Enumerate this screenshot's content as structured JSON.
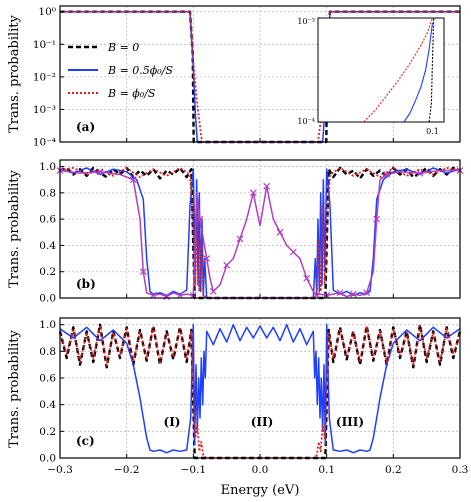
{
  "figure": {
    "xlabel": "Energy (eV)",
    "ylabel": "Trans. probability",
    "x_ticks": [
      "−0.3",
      "−0.2",
      "−0.1",
      "0.0",
      "0.1",
      "0.2",
      "0.3"
    ]
  },
  "chart_data": [
    {
      "panel": "(a)",
      "type": "line",
      "ylabel": "Trans. probability",
      "yscale": "log",
      "xlim": [
        -0.3,
        0.3
      ],
      "ylim": [
        0.0001,
        1.5
      ],
      "y_ticks": [
        "10⁰",
        "10⁻¹",
        "10⁻²",
        "10⁻³",
        "10⁻⁴"
      ],
      "grid": true,
      "legend": {
        "placement": "left",
        "entries": [
          "B = 0",
          "B = 0.5ϕ₀/S",
          "B = ϕ₀/S"
        ]
      },
      "series": [
        {
          "name": "B = 0",
          "color": "#000000",
          "style": "dashed",
          "x": [
            -0.3,
            -0.105,
            -0.101,
            -0.0995,
            0.0995,
            0.101,
            0.105,
            0.3
          ],
          "y": [
            1.0,
            1.0,
            0.05,
            0.0001,
            0.0001,
            0.05,
            1.0,
            1.0
          ]
        },
        {
          "name": "B = 0.5ϕ₀/S",
          "color": "#1f3fff",
          "style": "solid",
          "x": [
            -0.3,
            -0.105,
            -0.1,
            -0.097,
            -0.094,
            0.094,
            0.097,
            0.1,
            0.105,
            0.3
          ],
          "y": [
            1.0,
            1.0,
            0.02,
            0.0008,
            0.0001,
            0.0001,
            0.0008,
            0.02,
            1.0,
            1.0
          ]
        },
        {
          "name": "B = ϕ₀/S",
          "color": "#e02020",
          "style": "dotted",
          "x": [
            -0.3,
            -0.105,
            -0.1,
            -0.095,
            -0.09,
            -0.087,
            0.087,
            0.09,
            0.095,
            0.1,
            0.105,
            0.3
          ],
          "y": [
            1.0,
            1.0,
            0.03,
            0.002,
            0.0003,
            0.0001,
            0.0001,
            0.0003,
            0.002,
            0.03,
            1.0,
            1.0
          ]
        }
      ],
      "inset": {
        "xlim": [
          0.0,
          0.11
        ],
        "ylim": [
          0.0001,
          0.001
        ],
        "x_ticks": [
          "0.1"
        ],
        "y_ticks": [
          "10⁻³",
          "10⁻⁴"
        ],
        "series": [
          {
            "name": "B = 0",
            "color": "#000000",
            "style": "dotted",
            "x": [
              0.097,
              0.099,
              0.1,
              0.101
            ],
            "y": [
              0.0001,
              0.00015,
              0.0004,
              0.001
            ]
          },
          {
            "name": "B = 0.5ϕ₀/S",
            "color": "#1f3fff",
            "style": "solid",
            "x": [
              0.075,
              0.08,
              0.085,
              0.09,
              0.094,
              0.097,
              0.1
            ],
            "y": [
              0.0001,
              0.00012,
              0.00016,
              0.00022,
              0.00032,
              0.0005,
              0.0009
            ]
          },
          {
            "name": "B = ϕ₀/S",
            "color": "#e02020",
            "style": "dotted",
            "x": [
              0.04,
              0.05,
              0.06,
              0.07,
              0.08,
              0.09,
              0.095,
              0.1
            ],
            "y": [
              0.0001,
              0.00013,
              0.00018,
              0.00025,
              0.00036,
              0.00055,
              0.0007,
              0.001
            ]
          }
        ]
      }
    },
    {
      "panel": "(b)",
      "type": "line",
      "ylabel": "Trans. probability",
      "xlim": [
        -0.3,
        0.3
      ],
      "ylim": [
        0,
        1.05
      ],
      "y_ticks": [
        "1.0",
        "0.8",
        "0.6",
        "0.4",
        "0.2",
        "0.0"
      ],
      "grid": true,
      "series": [
        {
          "name": "B = 0",
          "color": "#000000",
          "style": "dashed",
          "x": [
            -0.3,
            -0.29,
            -0.28,
            -0.27,
            -0.26,
            -0.25,
            -0.24,
            -0.23,
            -0.22,
            -0.21,
            -0.2,
            -0.19,
            -0.18,
            -0.17,
            -0.16,
            -0.15,
            -0.14,
            -0.13,
            -0.12,
            -0.11,
            -0.103,
            -0.1,
            -0.098,
            0.098,
            0.1,
            0.103,
            0.11,
            0.12,
            0.13,
            0.14,
            0.15,
            0.16,
            0.17,
            0.18,
            0.19,
            0.2,
            0.21,
            0.22,
            0.23,
            0.24,
            0.25,
            0.26,
            0.27,
            0.28,
            0.29,
            0.3
          ],
          "y": [
            0.97,
            0.99,
            0.94,
            0.98,
            0.93,
            0.99,
            0.95,
            0.92,
            0.98,
            0.94,
            0.99,
            0.92,
            0.97,
            0.93,
            0.98,
            0.91,
            0.97,
            0.94,
            0.99,
            0.92,
            0.98,
            0.4,
            0.0,
            0.0,
            0.4,
            0.98,
            0.92,
            0.99,
            0.94,
            0.97,
            0.91,
            0.98,
            0.93,
            0.97,
            0.92,
            0.99,
            0.94,
            0.98,
            0.92,
            0.95,
            0.99,
            0.93,
            0.98,
            0.94,
            0.99,
            0.97
          ]
        },
        {
          "name": "B = 0.5ϕ₀/S",
          "color": "#1f3fff",
          "style": "solid",
          "x": [
            -0.3,
            -0.28,
            -0.26,
            -0.24,
            -0.22,
            -0.2,
            -0.185,
            -0.175,
            -0.17,
            -0.165,
            -0.16,
            -0.15,
            -0.14,
            -0.13,
            -0.12,
            -0.11,
            -0.105,
            -0.1,
            -0.097,
            -0.095,
            -0.093,
            -0.091,
            -0.089,
            -0.087,
            -0.085,
            -0.083,
            -0.08,
            0.08,
            0.083,
            0.085,
            0.087,
            0.089,
            0.091,
            0.093,
            0.095,
            0.097,
            0.1,
            0.105,
            0.11,
            0.12,
            0.13,
            0.14,
            0.15,
            0.16,
            0.165,
            0.17,
            0.175,
            0.185,
            0.2,
            0.22,
            0.24,
            0.26,
            0.28,
            0.3
          ],
          "y": [
            0.98,
            0.95,
            0.99,
            0.94,
            0.98,
            0.96,
            0.9,
            0.75,
            0.3,
            0.05,
            0.03,
            0.04,
            0.02,
            0.05,
            0.03,
            0.06,
            0.7,
            0.98,
            0.2,
            0.9,
            0.1,
            0.8,
            0.05,
            0.6,
            0.02,
            0.3,
            0.0,
            0.0,
            0.3,
            0.02,
            0.6,
            0.05,
            0.8,
            0.1,
            0.9,
            0.2,
            0.98,
            0.7,
            0.06,
            0.03,
            0.05,
            0.02,
            0.04,
            0.03,
            0.05,
            0.3,
            0.75,
            0.9,
            0.96,
            0.98,
            0.94,
            0.99,
            0.95,
            0.98
          ]
        },
        {
          "name": "B = ϕ₀/S",
          "color": "#e02020",
          "style": "dotted",
          "x": [
            -0.3,
            -0.28,
            -0.26,
            -0.24,
            -0.22,
            -0.2,
            -0.18,
            -0.16,
            -0.14,
            -0.12,
            -0.105,
            -0.1,
            -0.097,
            -0.094,
            -0.091,
            -0.088,
            -0.085,
            -0.08,
            0.08,
            0.085,
            0.088,
            0.091,
            0.094,
            0.097,
            0.1,
            0.105,
            0.12,
            0.14,
            0.16,
            0.18,
            0.2,
            0.22,
            0.24,
            0.26,
            0.28,
            0.3
          ],
          "y": [
            0.97,
            0.99,
            0.94,
            0.98,
            0.93,
            0.99,
            0.92,
            0.98,
            0.93,
            0.99,
            0.94,
            0.55,
            0.1,
            0.7,
            0.05,
            0.45,
            0.02,
            0.0,
            0.0,
            0.02,
            0.45,
            0.05,
            0.7,
            0.1,
            0.55,
            0.94,
            0.99,
            0.93,
            0.98,
            0.92,
            0.99,
            0.93,
            0.98,
            0.94,
            0.99,
            0.97
          ]
        },
        {
          "name": "",
          "color": "#b040c0",
          "style": "solid-markers",
          "x": [
            -0.3,
            -0.27,
            -0.24,
            -0.21,
            -0.19,
            -0.18,
            -0.175,
            -0.17,
            -0.16,
            -0.15,
            -0.14,
            -0.13,
            -0.12,
            -0.11,
            -0.1,
            -0.095,
            -0.09,
            -0.085,
            -0.08,
            -0.075,
            -0.07,
            -0.06,
            -0.05,
            -0.04,
            -0.03,
            -0.02,
            -0.01,
            0.0,
            0.01,
            0.02,
            0.03,
            0.04,
            0.05,
            0.06,
            0.07,
            0.08,
            0.085,
            0.09,
            0.1,
            0.11,
            0.12,
            0.13,
            0.14,
            0.15,
            0.16,
            0.17,
            0.175,
            0.18,
            0.19,
            0.21,
            0.24,
            0.27,
            0.3
          ],
          "y": [
            0.97,
            0.95,
            0.96,
            0.94,
            0.9,
            0.6,
            0.2,
            0.04,
            0.02,
            0.03,
            0.01,
            0.04,
            0.02,
            0.03,
            0.02,
            0.8,
            0.6,
            0.45,
            0.3,
            0.15,
            0.05,
            0.1,
            0.25,
            0.3,
            0.45,
            0.6,
            0.8,
            0.55,
            0.85,
            0.6,
            0.5,
            0.4,
            0.35,
            0.3,
            0.15,
            0.05,
            0.02,
            0.03,
            0.02,
            0.03,
            0.04,
            0.01,
            0.03,
            0.02,
            0.04,
            0.2,
            0.6,
            0.9,
            0.94,
            0.96,
            0.95,
            0.97,
            0.97
          ]
        }
      ]
    },
    {
      "panel": "(c)",
      "type": "line",
      "ylabel": "Trans. probability",
      "xlabel": "Energy (eV)",
      "xlim": [
        -0.3,
        0.3
      ],
      "ylim": [
        0,
        1.05
      ],
      "y_ticks": [
        "1.0",
        "0.8",
        "0.6",
        "0.4",
        "0.2",
        "0.0"
      ],
      "grid": true,
      "annotations": [
        "(I)",
        "(II)",
        "(III)"
      ],
      "series": [
        {
          "name": "B = 0",
          "color": "#000000",
          "style": "dashed",
          "x": [
            -0.3,
            -0.29,
            -0.28,
            -0.27,
            -0.26,
            -0.25,
            -0.24,
            -0.23,
            -0.22,
            -0.21,
            -0.2,
            -0.19,
            -0.18,
            -0.17,
            -0.16,
            -0.15,
            -0.14,
            -0.13,
            -0.12,
            -0.11,
            -0.103,
            -0.1,
            -0.098,
            0.098,
            0.1,
            0.103,
            0.11,
            0.12,
            0.13,
            0.14,
            0.15,
            0.16,
            0.17,
            0.18,
            0.19,
            0.2,
            0.21,
            0.22,
            0.23,
            0.24,
            0.25,
            0.26,
            0.27,
            0.28,
            0.29,
            0.3
          ],
          "y": [
            0.95,
            0.75,
            0.98,
            0.7,
            0.95,
            0.72,
            1.0,
            0.68,
            0.95,
            0.75,
            0.98,
            0.7,
            0.96,
            0.73,
            0.99,
            0.7,
            0.95,
            0.74,
            0.98,
            0.72,
            0.96,
            0.4,
            0.0,
            0.0,
            0.4,
            0.96,
            0.72,
            0.98,
            0.74,
            0.95,
            0.7,
            0.99,
            0.73,
            0.96,
            0.7,
            0.98,
            0.75,
            0.95,
            0.68,
            1.0,
            0.72,
            0.95,
            0.7,
            0.98,
            0.75,
            0.95
          ]
        },
        {
          "name": "B = 0.5ϕ₀/S",
          "color": "#1f3fff",
          "style": "solid",
          "x": [
            -0.3,
            -0.28,
            -0.26,
            -0.24,
            -0.22,
            -0.2,
            -0.19,
            -0.18,
            -0.175,
            -0.17,
            -0.165,
            -0.16,
            -0.15,
            -0.14,
            -0.13,
            -0.12,
            -0.11,
            -0.104,
            -0.1,
            -0.098,
            -0.096,
            -0.094,
            -0.092,
            -0.09,
            -0.088,
            -0.086,
            -0.084,
            -0.082,
            -0.08,
            -0.07,
            -0.06,
            -0.05,
            -0.04,
            -0.03,
            -0.02,
            -0.01,
            0.0,
            0.01,
            0.02,
            0.03,
            0.04,
            0.05,
            0.06,
            0.07,
            0.08,
            0.082,
            0.084,
            0.086,
            0.088,
            0.09,
            0.092,
            0.094,
            0.096,
            0.098,
            0.1,
            0.104,
            0.11,
            0.12,
            0.13,
            0.14,
            0.15,
            0.16,
            0.165,
            0.17,
            0.175,
            0.18,
            0.19,
            0.2,
            0.22,
            0.24,
            0.26,
            0.28,
            0.3
          ],
          "y": [
            0.97,
            0.9,
            0.98,
            0.88,
            0.96,
            0.86,
            0.7,
            0.45,
            0.3,
            0.15,
            0.06,
            0.05,
            0.06,
            0.04,
            0.06,
            0.05,
            0.06,
            0.3,
            1.0,
            0.1,
            0.7,
            0.2,
            0.6,
            0.3,
            0.75,
            0.4,
            0.8,
            0.6,
            0.95,
            0.85,
            0.97,
            0.87,
            1.0,
            0.88,
            0.98,
            0.9,
            0.99,
            0.9,
            0.98,
            0.88,
            1.0,
            0.87,
            0.97,
            0.85,
            0.95,
            0.6,
            0.8,
            0.4,
            0.75,
            0.3,
            0.6,
            0.2,
            0.7,
            0.1,
            1.0,
            0.3,
            0.06,
            0.05,
            0.06,
            0.04,
            0.06,
            0.05,
            0.06,
            0.15,
            0.3,
            0.45,
            0.7,
            0.86,
            0.96,
            0.88,
            0.98,
            0.9,
            0.97
          ]
        },
        {
          "name": "B = ϕ₀/S",
          "color": "#e02020",
          "style": "dotted",
          "x": [
            -0.3,
            -0.29,
            -0.28,
            -0.27,
            -0.26,
            -0.25,
            -0.24,
            -0.23,
            -0.22,
            -0.21,
            -0.2,
            -0.19,
            -0.18,
            -0.17,
            -0.16,
            -0.15,
            -0.14,
            -0.13,
            -0.12,
            -0.11,
            -0.103,
            -0.1,
            -0.097,
            -0.094,
            -0.091,
            -0.088,
            -0.085,
            -0.08,
            0.08,
            0.085,
            0.088,
            0.091,
            0.094,
            0.097,
            0.1,
            0.103,
            0.11,
            0.12,
            0.13,
            0.14,
            0.15,
            0.16,
            0.17,
            0.18,
            0.19,
            0.2,
            0.21,
            0.22,
            0.23,
            0.24,
            0.25,
            0.26,
            0.27,
            0.28,
            0.29,
            0.3
          ],
          "y": [
            0.93,
            0.78,
            0.97,
            0.72,
            0.94,
            0.75,
            0.99,
            0.7,
            0.94,
            0.77,
            0.97,
            0.72,
            0.95,
            0.75,
            0.98,
            0.72,
            0.94,
            0.76,
            0.97,
            0.74,
            0.95,
            0.5,
            0.15,
            0.25,
            0.05,
            0.12,
            0.02,
            0.0,
            0.0,
            0.02,
            0.12,
            0.05,
            0.25,
            0.15,
            0.5,
            0.95,
            0.74,
            0.97,
            0.76,
            0.94,
            0.72,
            0.98,
            0.75,
            0.95,
            0.72,
            0.97,
            0.77,
            0.94,
            0.7,
            0.99,
            0.75,
            0.94,
            0.72,
            0.97,
            0.78,
            0.93
          ]
        }
      ]
    }
  ]
}
